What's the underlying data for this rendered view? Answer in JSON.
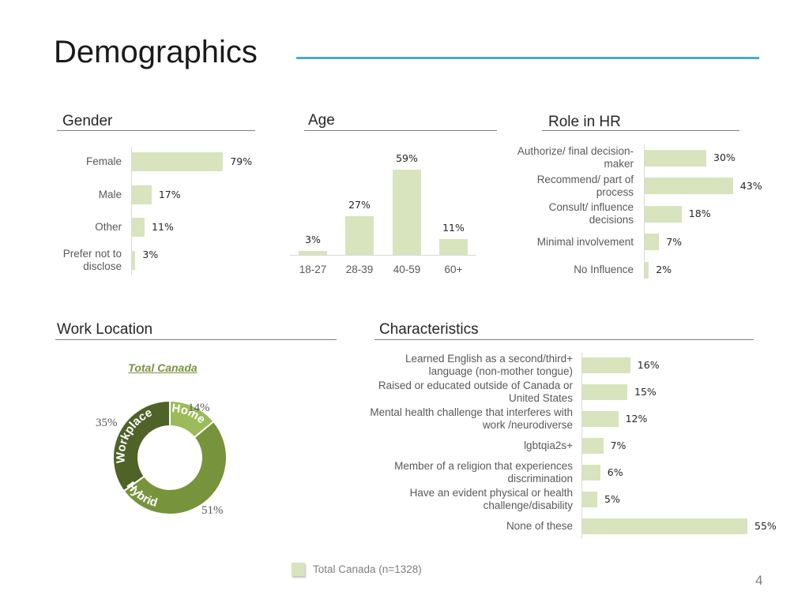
{
  "page": {
    "title": "Demographics",
    "page_number": "4"
  },
  "sections": {
    "gender": "Gender",
    "age": "Age",
    "role": "Role in HR",
    "work_location": "Work Location",
    "characteristics": "Characteristics"
  },
  "legend": {
    "label": "Total Canada (n=1328)",
    "color": "#d7e4bd"
  },
  "chart_data": [
    {
      "type": "bar",
      "orientation": "horizontal",
      "title": "Gender",
      "categories": [
        "Female",
        "Male",
        "Other",
        "Prefer not to disclose"
      ],
      "values": [
        79,
        17,
        11,
        3
      ],
      "value_labels": [
        "79%",
        "17%",
        "11%",
        "3%"
      ],
      "color": "#d7e4bd"
    },
    {
      "type": "bar",
      "orientation": "vertical",
      "title": "Age",
      "categories": [
        "18-27",
        "28-39",
        "40-59",
        "60+"
      ],
      "values": [
        3,
        27,
        59,
        11
      ],
      "value_labels": [
        "3%",
        "27%",
        "59%",
        "11%"
      ],
      "color": "#d7e4bd"
    },
    {
      "type": "bar",
      "orientation": "horizontal",
      "title": "Role in HR",
      "categories": [
        "Authorize/ final decision-maker",
        "Recommend/ part of process",
        "Consult/ influence decisions",
        "Minimal involvement",
        "No Influence"
      ],
      "values": [
        30,
        43,
        18,
        7,
        2
      ],
      "value_labels": [
        "30%",
        "43%",
        "18%",
        "7%",
        "2%"
      ],
      "color": "#d7e4bd"
    },
    {
      "type": "pie",
      "subtype": "donut",
      "title": "Work Location",
      "center_label": "Total Canada",
      "categories": [
        "Home",
        "Hybrid",
        "Workplace"
      ],
      "values": [
        14,
        51,
        35
      ],
      "value_labels": [
        "14%",
        "51%",
        "35%"
      ],
      "colors": [
        "#9bbb59",
        "#77933c",
        "#4f6228"
      ]
    },
    {
      "type": "bar",
      "orientation": "horizontal",
      "title": "Characteristics",
      "categories": [
        "Learned English as a second/third+ language (non-mother tongue)",
        "Raised or educated outside of Canada or United States",
        "Mental health challenge that interferes with work /neurodiverse",
        "lgbtqia2s+",
        "Member of a religion that experiences discrimination",
        "Have an evident physical or health challenge/disability",
        "None of these"
      ],
      "values": [
        16,
        15,
        12,
        7,
        6,
        5,
        55
      ],
      "value_labels": [
        "16%",
        "15%",
        "12%",
        "7%",
        "6%",
        "5%",
        "55%"
      ],
      "color": "#d7e4bd"
    }
  ]
}
